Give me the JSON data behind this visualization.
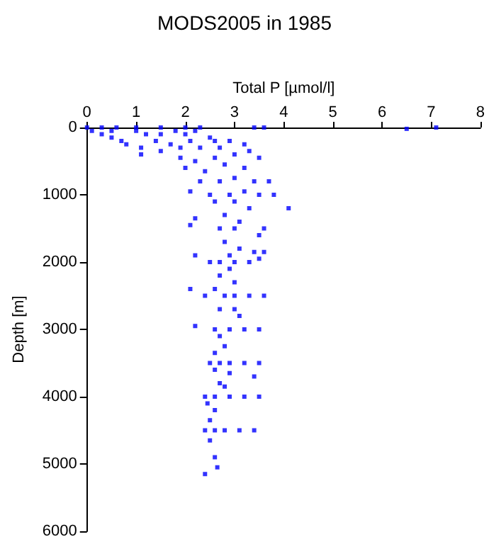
{
  "chart_data": {
    "type": "scatter",
    "title": "MODS2005 in 1985",
    "xlabel": "Total P [µmol/l]",
    "ylabel": "Depth [m]",
    "xlim": [
      0,
      8
    ],
    "xticks": [
      0,
      1,
      2,
      3,
      4,
      5,
      6,
      7,
      8
    ],
    "ylim": [
      6000,
      0
    ],
    "yticks": [
      0,
      1000,
      2000,
      3000,
      4000,
      5000,
      6000
    ],
    "grid": false,
    "marker": "square",
    "series": [
      {
        "color": "#0000ff",
        "x": [
          0,
          0.3,
          0.6,
          1,
          1.5,
          2,
          2.3,
          3.4,
          3.6,
          6.5,
          7.1,
          0.1,
          0.3,
          0.5,
          0.7,
          0.5,
          1.0,
          1.2,
          1.5,
          1.8,
          2.0,
          2.2,
          0.8,
          1.1,
          1.4,
          1.7,
          2.1,
          2.5,
          2.6,
          2.9,
          3.2,
          1.1,
          1.5,
          1.9,
          2.3,
          2.7,
          3.3,
          1.9,
          2.2,
          2.6,
          3.0,
          3.5,
          2.0,
          2.4,
          2.8,
          3.2,
          2.3,
          2.7,
          3.0,
          3.4,
          3.7,
          2.9,
          3.2,
          3.5,
          3.8,
          2.5,
          2.1,
          2.6,
          3.0,
          3.3,
          4.1,
          2.2,
          2.8,
          3.1,
          2.1,
          2.7,
          3.0,
          3.6,
          3.5,
          2.8,
          3.1,
          3.4,
          2.9,
          3.6,
          2.2,
          2.5,
          2.7,
          3.0,
          3.3,
          3.5,
          2.9,
          2.7,
          3.0,
          2.1,
          2.6,
          2.8,
          3.0,
          3.3,
          3.6,
          2.4,
          2.7,
          3.0,
          3.1,
          2.2,
          2.6,
          2.9,
          3.2,
          3.5,
          2.7,
          2.8,
          2.6,
          2.7,
          2.9,
          3.2,
          3.5,
          2.5,
          2.6,
          2.9,
          3.4,
          2.7,
          2.8,
          2.6,
          2.9,
          3.2,
          3.5,
          2.4,
          2.45,
          2.6,
          2.5,
          2.6,
          2.8,
          3.1,
          3.4,
          2.4,
          2.5,
          2.6,
          2.65,
          2.4
        ],
        "values": [
          0,
          0,
          0,
          0,
          0,
          0,
          0,
          0,
          0,
          20,
          0,
          50,
          100,
          150,
          200,
          50,
          50,
          100,
          100,
          50,
          100,
          50,
          250,
          300,
          200,
          250,
          200,
          150,
          200,
          200,
          250,
          400,
          350,
          300,
          300,
          300,
          350,
          450,
          500,
          450,
          400,
          450,
          600,
          650,
          550,
          600,
          800,
          800,
          750,
          800,
          800,
          1000,
          950,
          1000,
          1000,
          1000,
          950,
          1100,
          1100,
          1200,
          1200,
          1350,
          1300,
          1400,
          1450,
          1500,
          1500,
          1500,
          1600,
          1700,
          1800,
          1850,
          1900,
          1850,
          1900,
          2000,
          2000,
          2000,
          2000,
          1950,
          2100,
          2200,
          2300,
          2400,
          2400,
          2500,
          2500,
          2500,
          2500,
          2500,
          2700,
          2700,
          2800,
          2950,
          3000,
          3000,
          3000,
          3000,
          3100,
          3250,
          3350,
          3500,
          3500,
          3500,
          3500,
          3500,
          3600,
          3650,
          3700,
          3800,
          3850,
          4000,
          4000,
          4000,
          4000,
          4000,
          4100,
          4200,
          4350,
          4500,
          4500,
          4500,
          4500,
          4500,
          4650,
          4900,
          5050,
          5150
        ]
      }
    ]
  }
}
